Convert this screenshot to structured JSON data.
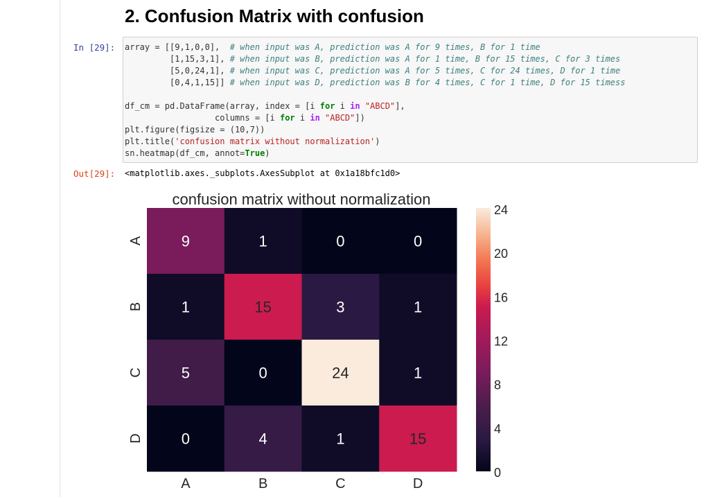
{
  "section_title": "2. Confusion Matrix with confusion",
  "input_prompt": "In [29]:",
  "output_prompt": "Out[29]:",
  "code_lines": [
    [
      {
        "t": "array = [[9,1,0,0],  "
      },
      {
        "t": "# when input was A, prediction was A for 9 times, B for 1 time",
        "c": "cm"
      }
    ],
    [
      {
        "t": "         [1,15,3,1], "
      },
      {
        "t": "# when input was B, prediction was A for 1 time, B for 15 times, C for 3 times",
        "c": "cm"
      }
    ],
    [
      {
        "t": "         [5,0,24,1], "
      },
      {
        "t": "# when input was C, prediction was A for 5 times, C for 24 times, D for 1 time",
        "c": "cm"
      }
    ],
    [
      {
        "t": "         [0,4,1,15]] "
      },
      {
        "t": "# when input was D, prediction was B for 4 times, C for 1 time, D for 15 timess",
        "c": "cm"
      }
    ],
    [
      {
        "t": ""
      }
    ],
    [
      {
        "t": "df_cm = pd.DataFrame(array, index = [i "
      },
      {
        "t": "for",
        "c": "kw"
      },
      {
        "t": " i "
      },
      {
        "t": "in",
        "c": "op"
      },
      {
        "t": " "
      },
      {
        "t": "\"ABCD\"",
        "c": "str"
      },
      {
        "t": "],"
      }
    ],
    [
      {
        "t": "                  columns = [i "
      },
      {
        "t": "for",
        "c": "kw"
      },
      {
        "t": " i "
      },
      {
        "t": "in",
        "c": "op"
      },
      {
        "t": " "
      },
      {
        "t": "\"ABCD\"",
        "c": "str"
      },
      {
        "t": "])"
      }
    ],
    [
      {
        "t": "plt.figure(figsize = (10,7))"
      }
    ],
    [
      {
        "t": "plt.title("
      },
      {
        "t": "'confusion matrix without normalization'",
        "c": "str"
      },
      {
        "t": ")"
      }
    ],
    [
      {
        "t": "sn.heatmap(df_cm, annot="
      },
      {
        "t": "True",
        "c": "kw"
      },
      {
        "t": ")"
      }
    ]
  ],
  "output_text": "<matplotlib.axes._subplots.AxesSubplot at 0x1a18bfc1d0>",
  "chart_data": {
    "type": "heatmap",
    "title": "confusion matrix without normalization",
    "row_labels": [
      "A",
      "B",
      "C",
      "D"
    ],
    "col_labels": [
      "A",
      "B",
      "C",
      "D"
    ],
    "values": [
      [
        9,
        1,
        0,
        0
      ],
      [
        1,
        15,
        3,
        1
      ],
      [
        5,
        0,
        24,
        1
      ],
      [
        0,
        4,
        1,
        15
      ]
    ],
    "colorbar_ticks": [
      0,
      4,
      8,
      12,
      16,
      20,
      24
    ],
    "vmin": 0,
    "vmax": 24,
    "colormap": "rocket"
  }
}
